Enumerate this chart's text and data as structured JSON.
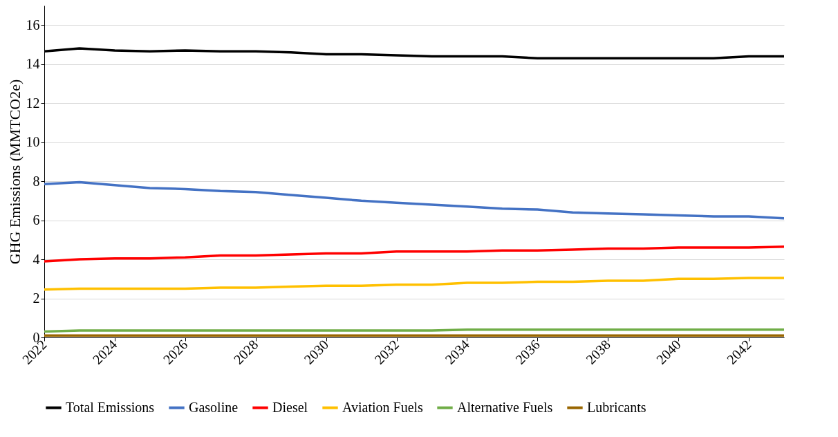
{
  "chart_data": {
    "type": "line",
    "ylabel": "GHG Emissions  (MMTCO2e)",
    "x": [
      2022,
      2023,
      2024,
      2025,
      2026,
      2027,
      2028,
      2029,
      2030,
      2031,
      2032,
      2033,
      2034,
      2035,
      2036,
      2037,
      2038,
      2039,
      2040,
      2041,
      2042,
      2043
    ],
    "series": [
      {
        "name": "Total Emissions",
        "color": "#000000",
        "values": [
          14.65,
          14.8,
          14.7,
          14.65,
          14.7,
          14.65,
          14.65,
          14.6,
          14.5,
          14.5,
          14.45,
          14.4,
          14.4,
          14.4,
          14.3,
          14.3,
          14.3,
          14.3,
          14.3,
          14.3,
          14.4,
          14.4
        ]
      },
      {
        "name": "Gasoline",
        "color": "#4472c4",
        "values": [
          7.85,
          7.95,
          7.8,
          7.65,
          7.6,
          7.5,
          7.45,
          7.3,
          7.15,
          7.0,
          6.9,
          6.8,
          6.7,
          6.6,
          6.55,
          6.4,
          6.35,
          6.3,
          6.25,
          6.2,
          6.2,
          6.1
        ]
      },
      {
        "name": "Diesel",
        "color": "#ff0000",
        "values": [
          3.9,
          4.0,
          4.05,
          4.05,
          4.1,
          4.2,
          4.2,
          4.25,
          4.3,
          4.3,
          4.4,
          4.4,
          4.4,
          4.45,
          4.45,
          4.5,
          4.55,
          4.55,
          4.6,
          4.6,
          4.6,
          4.65
        ]
      },
      {
        "name": "Aviation Fuels",
        "color": "#ffc000",
        "values": [
          2.45,
          2.5,
          2.5,
          2.5,
          2.5,
          2.55,
          2.55,
          2.6,
          2.65,
          2.65,
          2.7,
          2.7,
          2.8,
          2.8,
          2.85,
          2.85,
          2.9,
          2.9,
          3.0,
          3.0,
          3.05,
          3.05
        ]
      },
      {
        "name": "Alternative Fuels",
        "color": "#70ad47",
        "values": [
          0.3,
          0.35,
          0.35,
          0.35,
          0.35,
          0.35,
          0.35,
          0.35,
          0.35,
          0.35,
          0.35,
          0.35,
          0.4,
          0.4,
          0.4,
          0.4,
          0.4,
          0.4,
          0.4,
          0.4,
          0.4,
          0.4
        ]
      },
      {
        "name": "Lubricants",
        "color": "#996600",
        "values": [
          0.1,
          0.1,
          0.1,
          0.1,
          0.1,
          0.1,
          0.1,
          0.1,
          0.1,
          0.1,
          0.1,
          0.1,
          0.1,
          0.1,
          0.1,
          0.1,
          0.1,
          0.1,
          0.1,
          0.1,
          0.1,
          0.1
        ]
      }
    ],
    "xlim": [
      2022,
      2043
    ],
    "xticks": [
      2022,
      2024,
      2026,
      2028,
      2030,
      2032,
      2034,
      2036,
      2038,
      2040,
      2042
    ],
    "ylim": [
      0,
      17
    ],
    "yticks": [
      0,
      2,
      4,
      6,
      8,
      10,
      12,
      14,
      16
    ],
    "grid": "y",
    "legend": "bottom",
    "marker": "none",
    "line_style": "solid"
  }
}
